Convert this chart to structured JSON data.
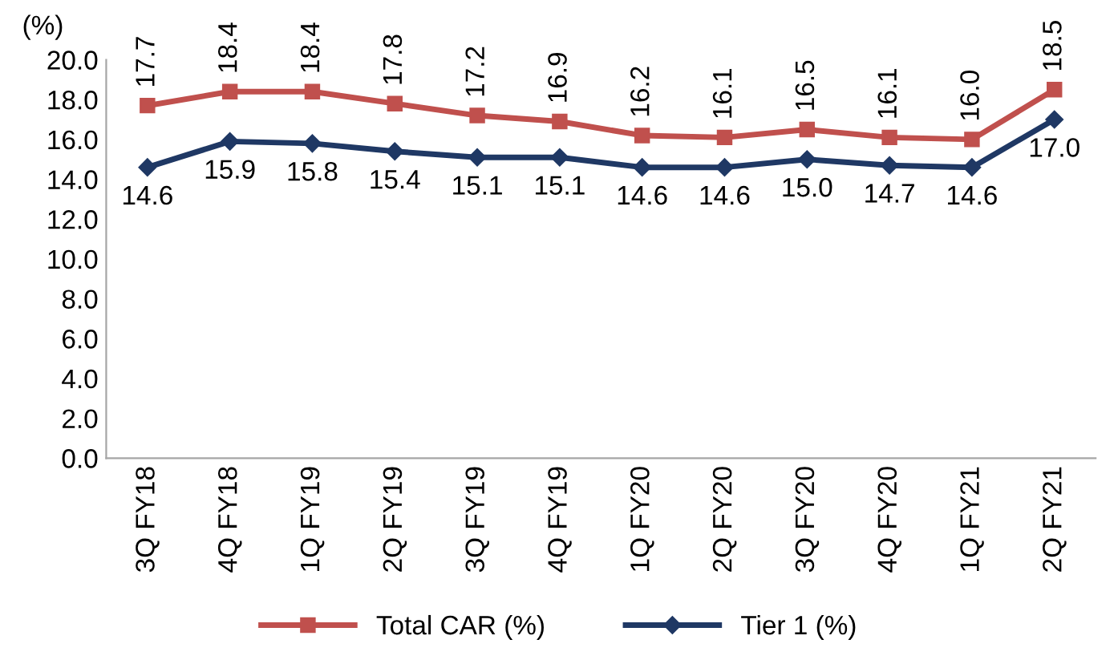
{
  "chart_data": {
    "type": "line",
    "ylabel": "(%)",
    "categories": [
      "3Q FY18",
      "4Q FY18",
      "1Q FY19",
      "2Q FY19",
      "3Q FY19",
      "4Q FY19",
      "1Q FY20",
      "2Q FY20",
      "3Q FY20",
      "4Q FY20",
      "1Q FY21",
      "2Q FY21"
    ],
    "series": [
      {
        "name": "Total CAR (%)",
        "color": "#c0504d",
        "marker": "square",
        "values": [
          17.7,
          18.4,
          18.4,
          17.8,
          17.2,
          16.9,
          16.2,
          16.1,
          16.5,
          16.1,
          16.0,
          18.5
        ],
        "value_labels": [
          "17.7",
          "18.4",
          "18.4",
          "17.8",
          "17.2",
          "16.9",
          "16.2",
          "16.1",
          "16.5",
          "16.1",
          "16.0",
          "18.5"
        ]
      },
      {
        "name": "Tier 1 (%)",
        "color": "#1f3864",
        "marker": "diamond",
        "values": [
          14.6,
          15.9,
          15.8,
          15.4,
          15.1,
          15.1,
          14.6,
          14.6,
          15.0,
          14.7,
          14.6,
          17.0
        ],
        "value_labels": [
          "14.6",
          "15.9",
          "15.8",
          "15.4",
          "15.1",
          "15.1",
          "14.6",
          "14.6",
          "15.0",
          "14.7",
          "14.6",
          "17.0"
        ]
      }
    ],
    "ylim": [
      0,
      20
    ],
    "yticks": [
      {
        "value": 0,
        "label": "0.0"
      },
      {
        "value": 2,
        "label": "2.0"
      },
      {
        "value": 4,
        "label": "4.0"
      },
      {
        "value": 6,
        "label": "6.0"
      },
      {
        "value": 8,
        "label": "8.0"
      },
      {
        "value": 10,
        "label": "10.0"
      },
      {
        "value": 12,
        "label": "12.0"
      },
      {
        "value": 14,
        "label": "14.0"
      },
      {
        "value": 16,
        "label": "16.0"
      },
      {
        "value": 18,
        "label": "18.0"
      },
      {
        "value": 20,
        "label": "20.0"
      }
    ],
    "grid": false,
    "legend": "bottom",
    "line_style": "solid"
  }
}
